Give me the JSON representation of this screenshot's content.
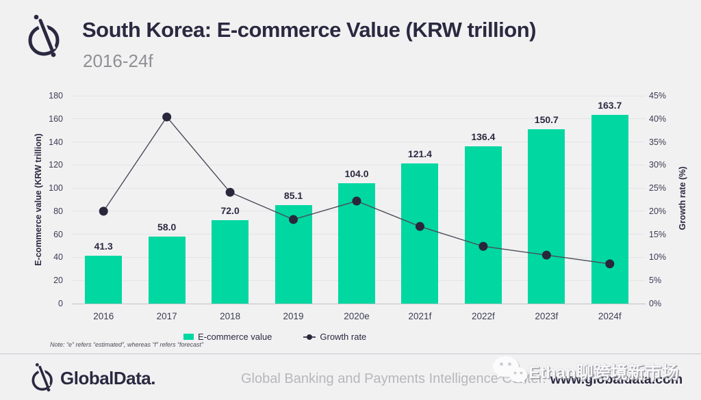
{
  "header": {
    "title": "South Korea: E-commerce Value (KRW trillion)",
    "subtitle": "2016-24f"
  },
  "chart_data": {
    "type": "bar",
    "categories": [
      "2016",
      "2017",
      "2018",
      "2019",
      "2020e",
      "2021f",
      "2022f",
      "2023f",
      "2024f"
    ],
    "series": [
      {
        "name": "E-commerce value",
        "type": "bar",
        "axis": "left",
        "values": [
          41.3,
          58.0,
          72.0,
          85.1,
          104.0,
          121.4,
          136.4,
          150.7,
          163.7
        ],
        "labels": [
          "41.3",
          "58.0",
          "72.0",
          "85.1",
          "104.0",
          "121.4",
          "136.4",
          "150.7",
          "163.7"
        ]
      },
      {
        "name": "Growth rate",
        "type": "line",
        "axis": "right",
        "values": [
          20.0,
          40.4,
          24.1,
          18.2,
          22.2,
          16.7,
          12.4,
          10.5,
          8.6
        ]
      }
    ],
    "left_axis": {
      "title": "E-commerce value (KRW trillion)",
      "min": 0,
      "max": 180,
      "step": 20,
      "ticks": [
        "0",
        "20",
        "40",
        "60",
        "80",
        "100",
        "120",
        "140",
        "160",
        "180"
      ]
    },
    "right_axis": {
      "title": "Growth rate (%)",
      "min": 0,
      "max": 45,
      "step": 5,
      "ticks": [
        "0%",
        "5%",
        "10%",
        "15%",
        "20%",
        "25%",
        "30%",
        "35%",
        "40%",
        "45%"
      ]
    },
    "grid": true,
    "legend_position": "bottom-center"
  },
  "legend": {
    "bar_label": "E-commerce value",
    "line_label": "Growth rate"
  },
  "note": "Note: “e” refers “estimated”, whereas “f” refers “forecast”",
  "footer": {
    "brand": "GlobalData.",
    "center": "Global Banking and Payments Intelligence Center.",
    "url": "www.globaldata.com"
  },
  "watermark": {
    "icon": "wechat-icon",
    "text": "Ethan聊跨境新市场"
  },
  "colors": {
    "background": "#f1f1f2",
    "bar": "#00d7a1",
    "line": "#4c4b58",
    "dot": "#29273c",
    "title": "#2b2940",
    "subtitle": "#8f9094",
    "gridline": "#e4e4e6"
  }
}
